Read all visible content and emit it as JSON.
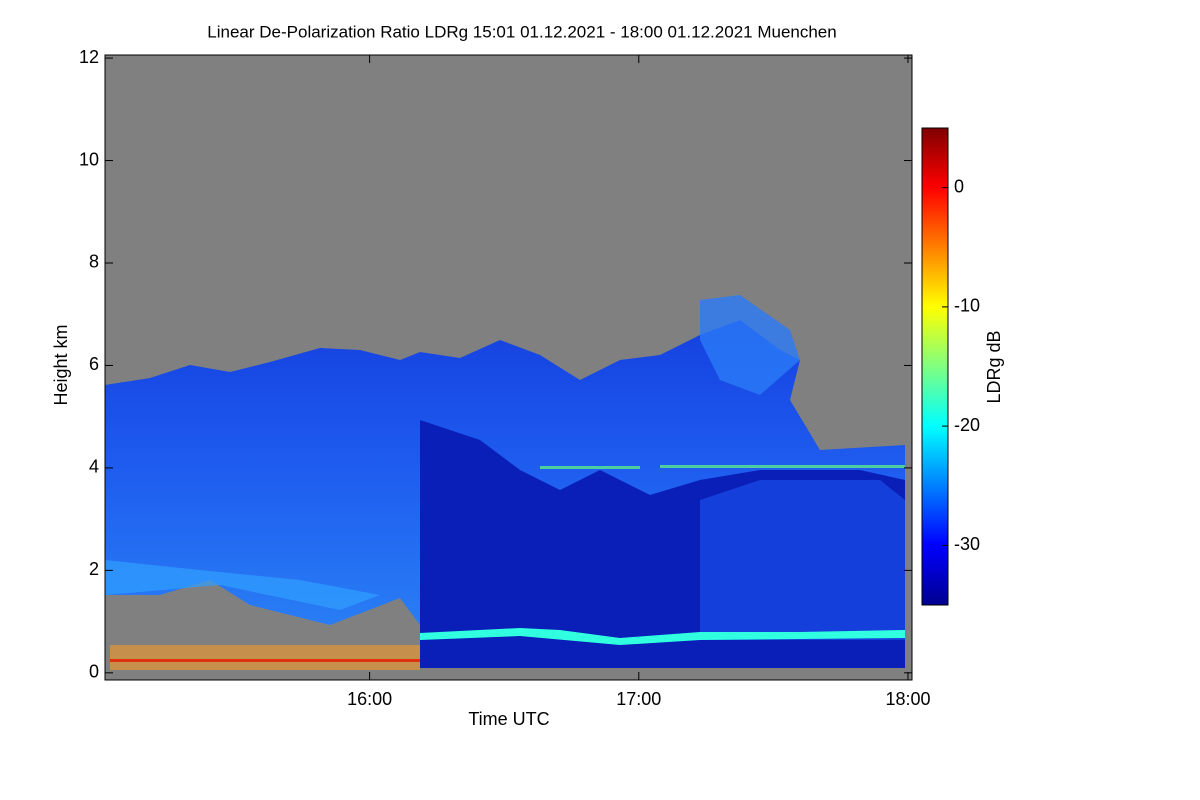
{
  "chart_data": {
    "type": "heatmap",
    "title": "Linear De-Polarization Ratio LDRg   15:01 01.12.2021 - 18:00 01.12.2021 Muenchen",
    "xlabel": "Time UTC",
    "ylabel": "Height km",
    "colorbar_label": "LDRg dB",
    "xlim": [
      15.017,
      18.015
    ],
    "xticks": [
      {
        "value": 16,
        "label": "16:00"
      },
      {
        "value": 17,
        "label": "17:00"
      },
      {
        "value": 18,
        "label": "18:00"
      }
    ],
    "ylim": [
      -0.14,
      12.06
    ],
    "yticks": [
      0,
      2,
      4,
      6,
      8,
      10,
      12
    ],
    "zlim": [
      -35,
      5
    ],
    "zticks": [
      0,
      -10,
      -20,
      -30
    ],
    "colormap": "jet",
    "background": "#808080"
  }
}
